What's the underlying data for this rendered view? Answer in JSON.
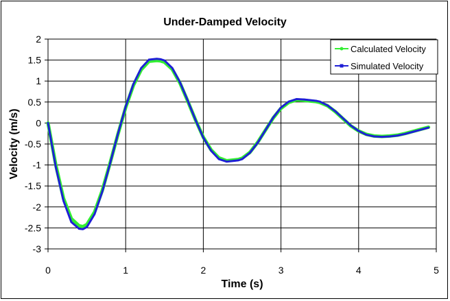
{
  "chart_data": {
    "type": "line",
    "title": "Under-Damped Velocity",
    "xlabel": "Time (s)",
    "ylabel": "Velocity (m/s)",
    "xlim": [
      0,
      5
    ],
    "ylim": [
      -3,
      2
    ],
    "x_ticks": [
      "0",
      "1",
      "2",
      "3",
      "4",
      "5"
    ],
    "y_ticks": [
      "2",
      "1.5",
      "1",
      "0.5",
      "0",
      "-0.5",
      "-1",
      "-1.5",
      "-2",
      "-2.5",
      "-3"
    ],
    "grid": true,
    "legend_position": "top-right",
    "x": [
      0.0,
      0.1,
      0.2,
      0.3,
      0.4,
      0.45,
      0.5,
      0.6,
      0.7,
      0.8,
      0.9,
      1.0,
      1.1,
      1.2,
      1.3,
      1.4,
      1.45,
      1.5,
      1.6,
      1.7,
      1.8,
      1.9,
      2.0,
      2.1,
      2.2,
      2.3,
      2.4,
      2.45,
      2.5,
      2.6,
      2.7,
      2.8,
      2.9,
      3.0,
      3.1,
      3.2,
      3.3,
      3.4,
      3.45,
      3.5,
      3.6,
      3.7,
      3.8,
      3.9,
      4.0,
      4.1,
      4.2,
      4.3,
      4.4,
      4.45,
      4.5,
      4.6,
      4.7,
      4.8,
      4.9
    ],
    "series": [
      {
        "name": "Calculated Velocity",
        "color": "#33ee33",
        "values": [
          0.0,
          -1.0,
          -1.8,
          -2.28,
          -2.45,
          -2.47,
          -2.42,
          -2.12,
          -1.6,
          -0.95,
          -0.27,
          0.37,
          0.9,
          1.27,
          1.47,
          1.49,
          1.48,
          1.45,
          1.28,
          0.95,
          0.52,
          0.07,
          -0.34,
          -0.64,
          -0.83,
          -0.9,
          -0.88,
          -0.87,
          -0.84,
          -0.7,
          -0.46,
          -0.17,
          0.12,
          0.35,
          0.49,
          0.55,
          0.54,
          0.52,
          0.51,
          0.49,
          0.41,
          0.27,
          0.1,
          -0.07,
          -0.19,
          -0.27,
          -0.31,
          -0.32,
          -0.31,
          -0.3,
          -0.29,
          -0.25,
          -0.2,
          -0.15,
          -0.1
        ]
      },
      {
        "name": "Simulated Velocity",
        "color": "#1f1fd6",
        "values": [
          0.0,
          -1.05,
          -1.86,
          -2.36,
          -2.52,
          -2.53,
          -2.48,
          -2.17,
          -1.63,
          -0.96,
          -0.26,
          0.39,
          0.93,
          1.31,
          1.51,
          1.53,
          1.52,
          1.49,
          1.31,
          0.97,
          0.53,
          0.07,
          -0.35,
          -0.66,
          -0.86,
          -0.92,
          -0.9,
          -0.89,
          -0.86,
          -0.71,
          -0.47,
          -0.17,
          0.13,
          0.37,
          0.51,
          0.57,
          0.56,
          0.54,
          0.53,
          0.51,
          0.42,
          0.28,
          0.11,
          -0.06,
          -0.19,
          -0.28,
          -0.32,
          -0.33,
          -0.32,
          -0.31,
          -0.3,
          -0.26,
          -0.21,
          -0.16,
          -0.11
        ]
      }
    ]
  }
}
